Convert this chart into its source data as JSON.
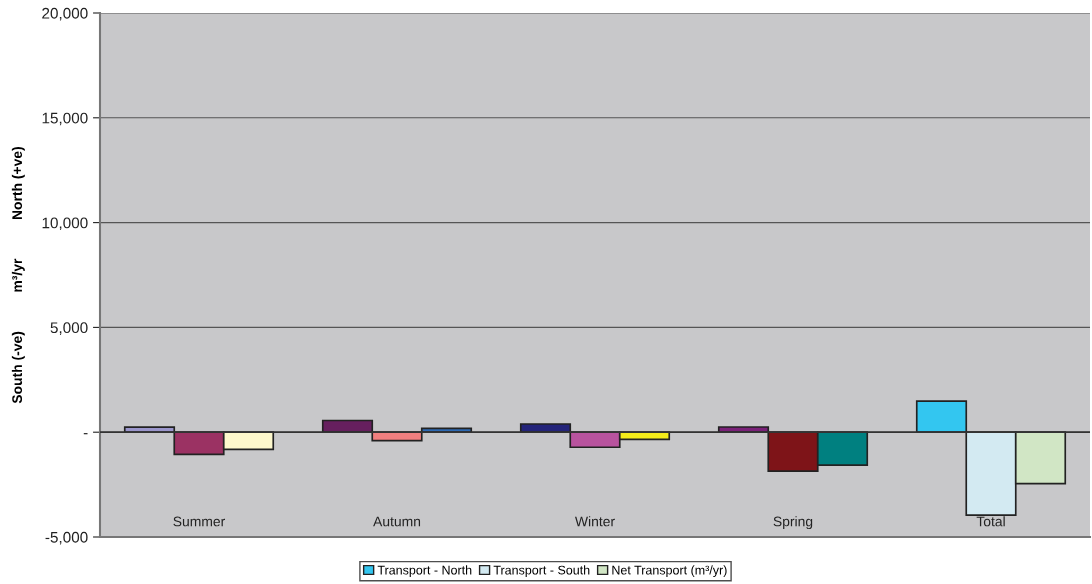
{
  "chart_data": {
    "type": "bar",
    "ylabel": "South (-ve)          m³/yr          North (+ve)",
    "categories": [
      "Summer",
      "Autumn",
      "Winter",
      "Spring",
      "Total"
    ],
    "series": [
      {
        "name": "Transport - North",
        "color": "#33c6f0",
        "colors": [
          "#9b96cc",
          "#661f5e",
          "#24247a",
          "#7b2179",
          "#33c6f0"
        ],
        "values": [
          240,
          560,
          390,
          250,
          1480
        ]
      },
      {
        "name": "Transport - South",
        "color": "#d3eaf2",
        "colors": [
          "#9b3263",
          "#f07f7f",
          "#b8539e",
          "#7e1418",
          "#d3eaf2"
        ],
        "values": [
          -1060,
          -400,
          -720,
          -1860,
          -3960
        ]
      },
      {
        "name": "Net Transport (m³/yr)",
        "color": "#d1e6c5",
        "colors": [
          "#fdf8cc",
          "#2c69b3",
          "#f4ec1a",
          "#008080",
          "#d1e6c5"
        ],
        "values": [
          -820,
          180,
          -340,
          -1570,
          -2450
        ]
      }
    ],
    "ylim": [
      -5000,
      20000
    ],
    "yticks": [
      {
        "value": -5000,
        "label": "-5,000"
      },
      {
        "value": 0,
        "label": "-"
      },
      {
        "value": 5000,
        "label": "5,000"
      },
      {
        "value": 10000,
        "label": "10,000"
      },
      {
        "value": 15000,
        "label": "15,000"
      },
      {
        "value": 20000,
        "label": "20,000"
      }
    ],
    "grid": "y",
    "legend": "bottom"
  }
}
